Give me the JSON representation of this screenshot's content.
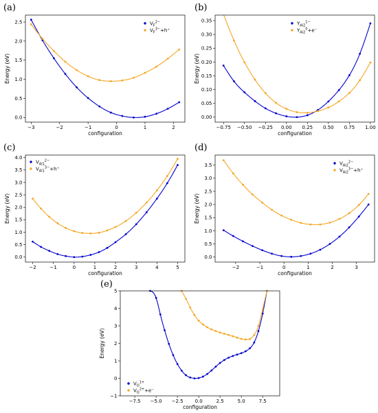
{
  "colors": {
    "series_1": "#0000cc",
    "series_2": "#f5a623",
    "axis": "#000000"
  },
  "chart_data": [
    {
      "panel": "(a)",
      "type": "line",
      "xlabel": "configuration",
      "ylabel": "Energy (eV)",
      "xlim": [
        -3.2,
        2.4
      ],
      "ylim": [
        -0.12,
        2.68
      ],
      "xticks": [
        -3,
        -2,
        -1,
        0,
        1,
        2
      ],
      "yticks": [
        0.0,
        0.5,
        1.0,
        1.5,
        2.0,
        2.5
      ],
      "legend_position": "upper-right",
      "series": [
        {
          "name": "V_F^{2−}",
          "label_base": "V",
          "label_sub": "F",
          "label_sup": "2−",
          "x": [
            -3.0,
            -2.6,
            -2.2,
            -1.8,
            -1.4,
            -1.0,
            -0.6,
            -0.2,
            0.2,
            0.6,
            1.0,
            1.4,
            1.8,
            2.2
          ],
          "y": [
            2.56,
            2.02,
            1.55,
            1.14,
            0.79,
            0.51,
            0.29,
            0.13,
            0.04,
            0.0,
            0.02,
            0.1,
            0.23,
            0.4
          ]
        },
        {
          "name": "V_F^{3−}+h^+",
          "label_base": "V",
          "label_sub": "F",
          "label_sup": "3−",
          "label_tail": "+h⁺",
          "x": [
            -3.0,
            -2.6,
            -2.2,
            -1.8,
            -1.4,
            -1.0,
            -0.6,
            -0.2,
            0.2,
            0.6,
            1.0,
            1.4,
            1.8,
            2.2
          ],
          "y": [
            2.44,
            2.06,
            1.74,
            1.46,
            1.24,
            1.08,
            0.98,
            0.95,
            0.97,
            1.04,
            1.17,
            1.33,
            1.54,
            1.78
          ]
        }
      ]
    },
    {
      "panel": "(b)",
      "type": "line",
      "xlabel": "configuration",
      "ylabel": "Energy (eV)",
      "xlim": [
        -0.85,
        1.05
      ],
      "ylim": [
        -0.018,
        0.37
      ],
      "xticks": [
        -0.75,
        -0.5,
        -0.25,
        0.0,
        0.25,
        0.5,
        0.75,
        1.0
      ],
      "yticks": [
        0.0,
        0.05,
        0.1,
        0.15,
        0.2,
        0.25,
        0.3,
        0.35
      ],
      "legend_position": "upper-center",
      "series": [
        {
          "name": "Y_{Al2}^{1−}",
          "label_base": "Y",
          "label_sub": "Al2",
          "label_sup": "1−",
          "x": [
            -0.75,
            -0.625,
            -0.5,
            -0.375,
            -0.25,
            -0.125,
            0.0,
            0.125,
            0.25,
            0.375,
            0.5,
            0.625,
            0.75,
            0.875,
            1.0
          ],
          "y": [
            0.187,
            0.13,
            0.09,
            0.058,
            0.032,
            0.014,
            0.003,
            0.0,
            0.007,
            0.026,
            0.057,
            0.098,
            0.152,
            0.23,
            0.34
          ]
        },
        {
          "name": "Y_{Al2}^{0}+e^−",
          "label_base": "Y",
          "label_sub": "Al2",
          "label_sup": "0",
          "label_tail": "+e⁻",
          "x": [
            -0.75,
            -0.625,
            -0.5,
            -0.375,
            -0.25,
            -0.125,
            0.0,
            0.125,
            0.25,
            0.375,
            0.5,
            0.625,
            0.75,
            0.875,
            1.0
          ],
          "y": [
            0.372,
            0.278,
            0.199,
            0.136,
            0.087,
            0.052,
            0.03,
            0.018,
            0.016,
            0.022,
            0.035,
            0.057,
            0.088,
            0.134,
            0.198
          ]
        }
      ]
    },
    {
      "panel": "(c)",
      "type": "line",
      "xlabel": "configuration",
      "ylabel": "Energy (eV)",
      "xlim": [
        -2.35,
        5.35
      ],
      "ylim": [
        -0.2,
        4.1
      ],
      "xticks": [
        -2,
        -1,
        0,
        1,
        2,
        3,
        4,
        5
      ],
      "yticks": [
        0.0,
        0.5,
        1.0,
        1.5,
        2.0,
        2.5,
        3.0,
        3.5,
        4.0
      ],
      "legend_position": "upper-left",
      "series": [
        {
          "name": "V_{Al1}^{2−}",
          "label_base": "V",
          "label_sub": "Al1",
          "label_sup": "2−",
          "x": [
            -2.0,
            -1.6,
            -1.2,
            -0.8,
            -0.4,
            0.0,
            0.4,
            0.8,
            1.2,
            1.6,
            2.0,
            2.5,
            3.0,
            3.5,
            4.0,
            4.5,
            5.0
          ],
          "y": [
            0.62,
            0.41,
            0.25,
            0.12,
            0.04,
            0.0,
            0.02,
            0.09,
            0.2,
            0.37,
            0.6,
            0.92,
            1.32,
            1.8,
            2.35,
            2.97,
            3.7
          ]
        },
        {
          "name": "V_{Al1}^{3−}+h^+",
          "label_base": "V",
          "label_sub": "Al1",
          "label_sup": "3−",
          "label_tail": "+h⁺",
          "x": [
            -2.0,
            -1.6,
            -1.2,
            -0.8,
            -0.4,
            0.0,
            0.4,
            0.8,
            1.2,
            1.6,
            2.0,
            2.5,
            3.0,
            3.5,
            4.0,
            4.5,
            5.0
          ],
          "y": [
            2.35,
            1.95,
            1.62,
            1.36,
            1.17,
            1.04,
            0.97,
            0.95,
            0.98,
            1.07,
            1.21,
            1.45,
            1.78,
            2.19,
            2.68,
            3.26,
            3.95
          ]
        }
      ]
    },
    {
      "panel": "(d)",
      "type": "line",
      "xlabel": "configuration",
      "ylabel": "Energy (eV)",
      "xlim": [
        -2.85,
        3.75
      ],
      "ylim": [
        -0.19,
        3.88
      ],
      "xticks": [
        -2,
        -1,
        0,
        1,
        2,
        3
      ],
      "yticks": [
        0.0,
        0.5,
        1.0,
        1.5,
        2.0,
        2.5,
        3.0,
        3.5
      ],
      "legend_position": "upper-right",
      "series": [
        {
          "name": "V_{Al2}^{2−}",
          "label_base": "V",
          "label_sub": "Al2",
          "label_sup": "2−",
          "x": [
            -2.5,
            -2.1,
            -1.7,
            -1.3,
            -0.9,
            -0.5,
            -0.1,
            0.3,
            0.7,
            1.1,
            1.5,
            1.9,
            2.3,
            2.7,
            3.1,
            3.5
          ],
          "y": [
            1.02,
            0.8,
            0.6,
            0.42,
            0.26,
            0.13,
            0.04,
            0.01,
            0.04,
            0.13,
            0.28,
            0.5,
            0.78,
            1.13,
            1.54,
            2.0
          ]
        },
        {
          "name": "V_{Al2}^{3−}+h^+",
          "label_base": "V",
          "label_sub": "Al2",
          "label_sup": "3−",
          "label_tail": "+h⁺",
          "x": [
            -2.5,
            -2.1,
            -1.7,
            -1.3,
            -0.9,
            -0.5,
            -0.1,
            0.3,
            0.7,
            1.1,
            1.5,
            1.9,
            2.3,
            2.7,
            3.1,
            3.5
          ],
          "y": [
            3.68,
            3.18,
            2.75,
            2.38,
            2.07,
            1.8,
            1.58,
            1.42,
            1.3,
            1.24,
            1.24,
            1.31,
            1.45,
            1.67,
            1.98,
            2.4
          ]
        }
      ]
    },
    {
      "panel": "(e)",
      "type": "line",
      "xlabel": "configuration",
      "ylabel": "Energy (eV)",
      "xlim": [
        -9.2,
        9.5
      ],
      "ylim": [
        -1.0,
        5.0
      ],
      "xticks": [
        -7.5,
        -5.0,
        -2.5,
        0.0,
        2.5,
        5.0,
        7.5
      ],
      "yticks": [
        -1,
        0,
        1,
        2,
        3,
        4,
        5
      ],
      "legend_position": "lower-left",
      "series": [
        {
          "name": "V_O^{1+}",
          "label_base": "V",
          "label_sub": "O",
          "label_sup": "1+",
          "x": [
            -5.7,
            -5.0,
            -4.5,
            -4.0,
            -3.5,
            -3.0,
            -2.5,
            -2.0,
            -1.5,
            -1.0,
            -0.5,
            0.0,
            0.5,
            1.0,
            1.5,
            2.0,
            2.5,
            3.0,
            3.5,
            4.0,
            4.5,
            5.0,
            5.5,
            6.0,
            6.5,
            7.0,
            7.5,
            8.0
          ],
          "y": [
            5.0,
            4.6,
            3.65,
            2.75,
            1.97,
            1.33,
            0.82,
            0.44,
            0.18,
            0.05,
            0.0,
            0.02,
            0.1,
            0.25,
            0.45,
            0.67,
            0.88,
            1.05,
            1.18,
            1.28,
            1.36,
            1.44,
            1.55,
            1.72,
            2.05,
            2.7,
            3.7,
            5.0
          ]
        },
        {
          "name": "V_O^{2+}+e^−",
          "label_base": "V",
          "label_sub": "O",
          "label_sup": "2+",
          "label_tail": "+e⁻",
          "x": [
            -2.0,
            -1.5,
            -1.0,
            -0.5,
            0.0,
            0.5,
            1.0,
            1.5,
            2.0,
            2.5,
            3.0,
            3.5,
            4.0,
            4.5,
            5.0,
            5.5,
            6.0,
            6.5,
            7.0,
            7.5,
            8.0
          ],
          "y": [
            5.0,
            4.55,
            4.05,
            3.62,
            3.3,
            3.08,
            2.92,
            2.8,
            2.7,
            2.62,
            2.55,
            2.48,
            2.41,
            2.33,
            2.26,
            2.22,
            2.25,
            2.48,
            3.0,
            3.95,
            5.0
          ]
        }
      ]
    }
  ]
}
